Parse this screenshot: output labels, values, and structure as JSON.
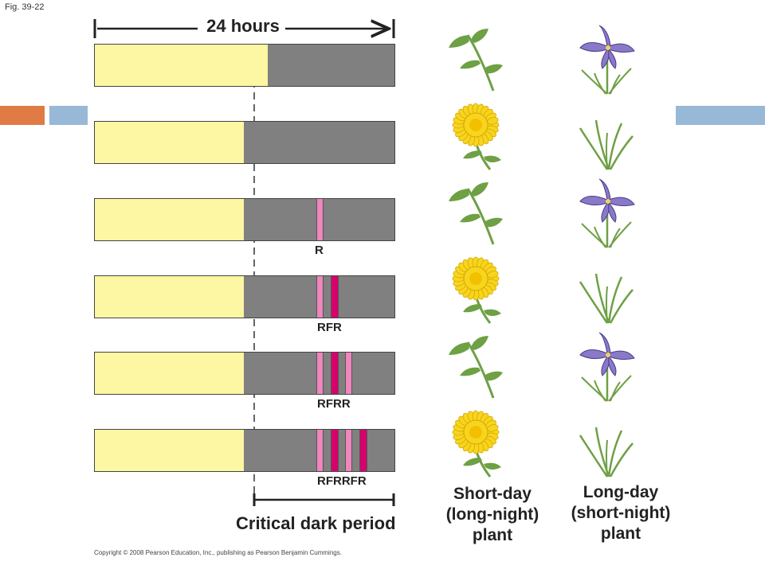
{
  "figure_label": "Fig. 39-22",
  "hours_label": "24 hours",
  "rows": [
    {
      "light_fraction": 0.575,
      "flashes": [],
      "sequence_label": "",
      "short_day_state": "vegetative",
      "long_day_state": "flowering"
    },
    {
      "light_fraction": 0.495,
      "flashes": [],
      "sequence_label": "",
      "short_day_state": "flowering",
      "long_day_state": "vegetative"
    },
    {
      "light_fraction": 0.495,
      "flashes": [
        "R"
      ],
      "sequence_label": "R",
      "short_day_state": "vegetative",
      "long_day_state": "flowering"
    },
    {
      "light_fraction": 0.495,
      "flashes": [
        "R",
        "FR"
      ],
      "sequence_label": "RFR",
      "short_day_state": "flowering",
      "long_day_state": "vegetative"
    },
    {
      "light_fraction": 0.495,
      "flashes": [
        "R",
        "FR",
        "R"
      ],
      "sequence_label": "RFRR",
      "short_day_state": "vegetative",
      "long_day_state": "flowering"
    },
    {
      "light_fraction": 0.495,
      "flashes": [
        "R",
        "FR",
        "R",
        "FR"
      ],
      "sequence_label": "RFRRFR",
      "short_day_state": "flowering",
      "long_day_state": "vegetative"
    }
  ],
  "critical_label": "Critical dark period",
  "short_day_plant": {
    "line1": "Short-day",
    "line2": "(long-night)",
    "line3": "plant"
  },
  "long_day_plant": {
    "line1": "Long-day",
    "line2": "(short-night)",
    "line3": "plant"
  },
  "copyright": "Copyright © 2008 Pearson Education, Inc., publishing as Pearson Benjamin Cummings.",
  "colors": {
    "light": "#fdf6a2",
    "dark": "#808080",
    "red_flash": "#ef86bd",
    "far_red_flash": "#d8006c",
    "accent_orange": "#e07b45",
    "accent_blue": "#98b8d8",
    "dandelion": "#f7d51e",
    "iris": "#8a78c8",
    "leaf": "#6ea044"
  }
}
